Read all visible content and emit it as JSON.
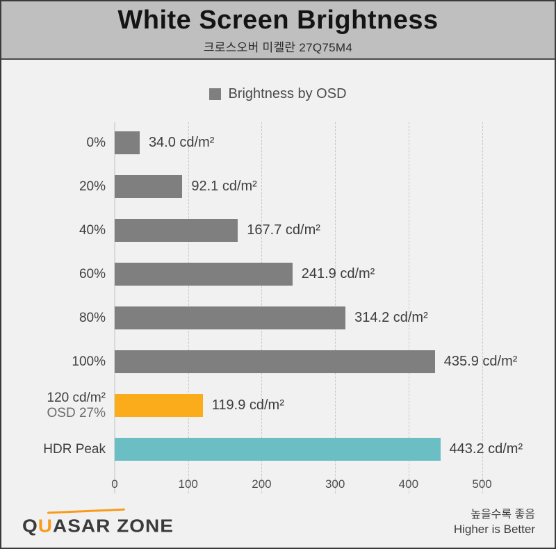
{
  "header": {
    "title": "White Screen Brightness",
    "subtitle": "크로스오버 미켈란 27Q75M4"
  },
  "legend": {
    "label": "Brightness by OSD",
    "swatch_color": "#7f7f7f"
  },
  "chart_data": {
    "type": "bar",
    "orientation": "horizontal",
    "title": "White Screen Brightness",
    "subtitle": "크로스오버 미켈란 27Q75M4",
    "series_name": "Brightness by OSD",
    "unit": "cd/m²",
    "categories": [
      "0%",
      "20%",
      "40%",
      "60%",
      "80%",
      "100%",
      "120 cd/m² OSD 27%",
      "HDR Peak"
    ],
    "values": [
      34.0,
      92.1,
      167.7,
      241.9,
      314.2,
      435.9,
      119.9,
      443.2
    ],
    "rows": [
      {
        "label_line1": "0%",
        "label_line2": "",
        "value": 34.0,
        "value_label": "34.0 cd/m²",
        "color": "#7f7f7f"
      },
      {
        "label_line1": "20%",
        "label_line2": "",
        "value": 92.1,
        "value_label": "92.1 cd/m²",
        "color": "#7f7f7f"
      },
      {
        "label_line1": "40%",
        "label_line2": "",
        "value": 167.7,
        "value_label": "167.7 cd/m²",
        "color": "#7f7f7f"
      },
      {
        "label_line1": "60%",
        "label_line2": "",
        "value": 241.9,
        "value_label": "241.9 cd/m²",
        "color": "#7f7f7f"
      },
      {
        "label_line1": "80%",
        "label_line2": "",
        "value": 314.2,
        "value_label": "314.2 cd/m²",
        "color": "#7f7f7f"
      },
      {
        "label_line1": "100%",
        "label_line2": "",
        "value": 435.9,
        "value_label": "435.9 cd/m²",
        "color": "#7f7f7f"
      },
      {
        "label_line1": "120 cd/m²",
        "label_line2": "OSD 27%",
        "value": 119.9,
        "value_label": "119.9 cd/m²",
        "color": "#fbac1a"
      },
      {
        "label_line1": "HDR Peak",
        "label_line2": "",
        "value": 443.2,
        "value_label": "443.2 cd/m²",
        "color": "#6cbec5"
      }
    ],
    "xticks": [
      0,
      100,
      200,
      300,
      400,
      500
    ],
    "xmax": 560,
    "xlim": [
      0,
      560
    ],
    "grid": "dashed-vertical",
    "legend_position": "top-center",
    "bar_color_default": "#7f7f7f",
    "bar_color_highlight_orange": "#fbac1a",
    "bar_color_highlight_teal": "#6cbec5"
  },
  "footer": {
    "logo_part_q": "Q",
    "logo_part_u": "U",
    "logo_part_rest": "ASAR ZONE",
    "note_ko": "높을수록 좋음",
    "note_en": "Higher is Better"
  },
  "colors": {
    "outer_border": "#3a3a3a",
    "header_bg": "#bfbfbf",
    "body_bg": "#f1f1f1",
    "accent_orange": "#f89b1b",
    "grid_line": "#c8c8c8"
  }
}
